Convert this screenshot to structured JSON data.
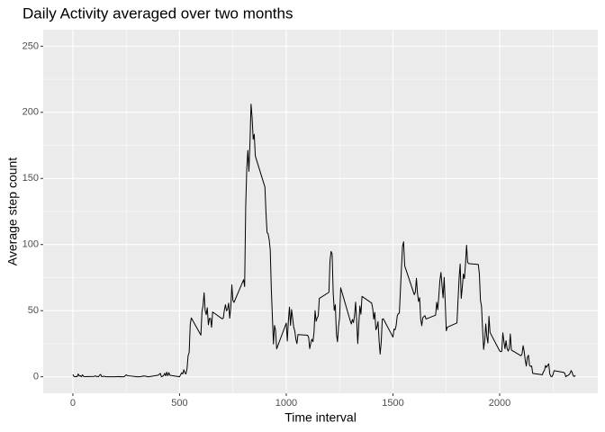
{
  "chart_data": {
    "type": "line",
    "title": "Daily Activity averaged over two months",
    "xlabel": "Time interval",
    "ylabel": "Average step count",
    "color": "#000000",
    "grid": true,
    "minor_grid": true,
    "background": "#ebebeb",
    "xlim": [
      -139,
      2460
    ],
    "ylim": [
      -12.5,
      262.5
    ],
    "xticks": [
      0,
      500,
      1000,
      1500,
      2000
    ],
    "yticks": [
      0,
      50,
      100,
      150,
      200,
      250
    ],
    "x": [
      0,
      5,
      10,
      15,
      20,
      25,
      30,
      35,
      40,
      45,
      50,
      55,
      100,
      105,
      110,
      115,
      120,
      125,
      130,
      135,
      140,
      145,
      150,
      155,
      200,
      215,
      220,
      225,
      230,
      240,
      250,
      255,
      300,
      310,
      320,
      330,
      340,
      350,
      355,
      400,
      410,
      415,
      420,
      425,
      430,
      435,
      440,
      445,
      450,
      455,
      500,
      505,
      510,
      515,
      520,
      525,
      530,
      535,
      540,
      545,
      550,
      555,
      600,
      605,
      610,
      615,
      620,
      625,
      630,
      635,
      640,
      645,
      650,
      655,
      700,
      705,
      710,
      715,
      720,
      725,
      730,
      735,
      740,
      745,
      750,
      755,
      800,
      805,
      810,
      815,
      820,
      825,
      830,
      835,
      840,
      845,
      850,
      855,
      900,
      905,
      910,
      915,
      920,
      925,
      930,
      935,
      940,
      945,
      950,
      955,
      1000,
      1005,
      1010,
      1015,
      1020,
      1025,
      1030,
      1035,
      1040,
      1045,
      1050,
      1055,
      1100,
      1105,
      1110,
      1115,
      1120,
      1125,
      1130,
      1135,
      1140,
      1145,
      1150,
      1155,
      1200,
      1205,
      1210,
      1215,
      1220,
      1225,
      1230,
      1235,
      1240,
      1245,
      1250,
      1255,
      1300,
      1305,
      1310,
      1315,
      1320,
      1325,
      1330,
      1335,
      1340,
      1345,
      1350,
      1355,
      1400,
      1405,
      1410,
      1415,
      1420,
      1425,
      1430,
      1435,
      1440,
      1445,
      1450,
      1455,
      1500,
      1505,
      1510,
      1515,
      1520,
      1525,
      1530,
      1535,
      1540,
      1545,
      1550,
      1555,
      1600,
      1605,
      1610,
      1615,
      1620,
      1625,
      1630,
      1635,
      1640,
      1645,
      1650,
      1655,
      1700,
      1705,
      1710,
      1715,
      1720,
      1725,
      1730,
      1735,
      1740,
      1745,
      1750,
      1755,
      1800,
      1805,
      1810,
      1815,
      1820,
      1825,
      1830,
      1835,
      1840,
      1845,
      1850,
      1855,
      1900,
      1905,
      1910,
      1915,
      1920,
      1925,
      1930,
      1935,
      1940,
      1945,
      1950,
      1955,
      2000,
      2005,
      2010,
      2015,
      2020,
      2025,
      2030,
      2035,
      2040,
      2045,
      2050,
      2055,
      2100,
      2105,
      2110,
      2115,
      2120,
      2125,
      2130,
      2135,
      2140,
      2145,
      2150,
      2155,
      2200,
      2205,
      2210,
      2215,
      2220,
      2225,
      2230,
      2235,
      2240,
      2245,
      2250,
      2255,
      2300,
      2305,
      2310,
      2315,
      2320,
      2325,
      2330,
      2335,
      2340,
      2345,
      2350,
      2355
    ],
    "values": [
      1.7,
      0.3,
      0.1,
      0.2,
      0.1,
      2.1,
      0.5,
      0.9,
      0,
      1.5,
      0.3,
      0.1,
      0.3,
      0.7,
      0.2,
      0.3,
      0,
      1.1,
      1.8,
      0.2,
      0.2,
      0.4,
      0.3,
      0,
      0,
      0.2,
      0,
      0.1,
      0,
      0,
      1.5,
      0.9,
      0,
      0,
      0.2,
      0.6,
      0.5,
      0,
      0,
      1.2,
      2.6,
      0,
      0.3,
      0.9,
      2.6,
      0.7,
      3.5,
      0.8,
      3.1,
      1.1,
      0,
      1.6,
      3,
      2.2,
      5.3,
      2.96,
      2.1,
      6.1,
      16,
      18.3,
      39.5,
      44.5,
      31.5,
      49.3,
      53.8,
      63.5,
      50,
      47,
      52.2,
      39.3,
      44.1,
      44.2,
      37.4,
      49,
      43.8,
      44.4,
      50.5,
      54.5,
      49.9,
      51,
      55.7,
      44.3,
      52.3,
      69.5,
      57.8,
      56.2,
      73.4,
      68.2,
      129.4,
      157.5,
      171.2,
      155.4,
      177.3,
      206.2,
      195.9,
      179.6,
      183.4,
      167,
      143.5,
      124,
      109.1,
      108.1,
      103.7,
      95.97,
      66.2,
      45.2,
      24.8,
      38.8,
      34.98,
      21.1,
      40.6,
      26.98,
      42.4,
      52.7,
      38.9,
      50.8,
      44.3,
      37.4,
      34.7,
      28.3,
      25.1,
      31.9,
      31.4,
      29.7,
      21.3,
      25.5,
      28.4,
      26.5,
      33.4,
      50,
      42,
      44.6,
      46,
      59.3,
      63.9,
      87.7,
      94.8,
      92.8,
      63.4,
      50.2,
      54.5,
      32.4,
      26.5,
      37.7,
      45.1,
      67.3,
      42.3,
      39.9,
      43.3,
      40.98,
      46.2,
      56.4,
      42.8,
      25.1,
      39.96,
      53.5,
      47.3,
      60.8,
      55.8,
      51.96,
      43.6,
      48.7,
      35.5,
      37.5,
      41.8,
      27.5,
      17.1,
      26.1,
      43.6,
      43.8,
      30,
      36.1,
      35.5,
      38.8,
      45.96,
      47.8,
      48.1,
      65.3,
      82.9,
      98.7,
      102.1,
      83.96,
      62.1,
      64.1,
      74.5,
      63.2,
      56.9,
      59.8,
      43.9,
      38.6,
      44.7,
      45.5,
      46.2,
      43.7,
      46.6,
      56.3,
      50.7,
      61.2,
      72.7,
      78.9,
      68.9,
      59.7,
      75.1,
      56.5,
      34.8,
      37.5,
      40.7,
      58,
      74.7,
      85.3,
      59.3,
      67.8,
      77.7,
      74.2,
      85.3,
      99.5,
      86.6,
      85.6,
      84.9,
      77.8,
      58,
      53.4,
      36.3,
      20.7,
      27.4,
      40,
      30.2,
      25.5,
      45.7,
      33.5,
      19.6,
      19,
      19.3,
      33.3,
      26.8,
      21.2,
      27.3,
      21.3,
      19.5,
      21.3,
      32.3,
      20.2,
      15.9,
      17.2,
      23.5,
      19.2,
      12.5,
      8.1,
      14.7,
      16.3,
      8.7,
      7.8,
      8.1,
      2.6,
      1.5,
      3.7,
      4.8,
      8.5,
      7.1,
      8.7,
      9.8,
      2.2,
      0.3,
      0.1,
      1.6,
      4.6,
      3.3,
      2.8,
      0,
      0.8,
      0.96,
      1.6,
      2.6,
      4.7,
      3.3,
      0.6,
      0.2,
      1.1
    ]
  }
}
